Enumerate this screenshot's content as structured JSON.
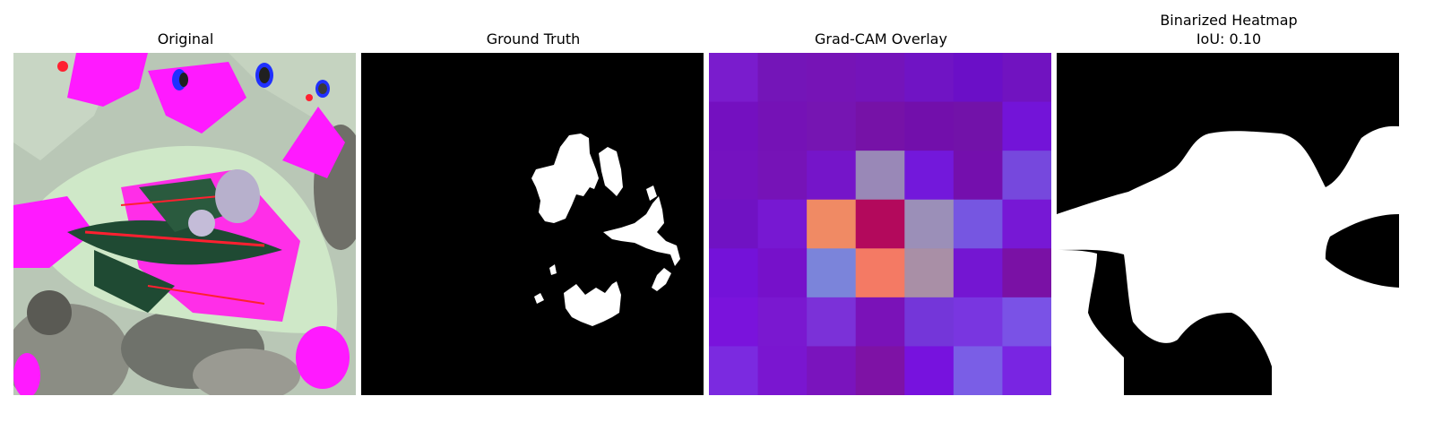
{
  "panels": [
    {
      "title": "Original"
    },
    {
      "title": "Ground Truth"
    },
    {
      "title": "Grad-CAM Overlay"
    },
    {
      "title": "Binarized Heatmap",
      "subtitle": "IoU: 0.10"
    }
  ],
  "gradcam_overlay": {
    "grid_size": 7,
    "cells": [
      [
        "#7a1ccd",
        "#7415b8",
        "#7614b6",
        "#7414ba",
        "#7014c4",
        "#6b0fc7",
        "#7113c0"
      ],
      [
        "#7410c0",
        "#7512b6",
        "#7615b2",
        "#7612a7",
        "#720fab",
        "#7212a9",
        "#7314d8"
      ],
      [
        "#7512c0",
        "#7613b7",
        "#7515c9",
        "#9988b7",
        "#7318db",
        "#740fad",
        "#7648dd"
      ],
      [
        "#7012c3",
        "#7718d2",
        "#f08a64",
        "#b3095c",
        "#9b8fb8",
        "#7656e1",
        "#7718d5"
      ],
      [
        "#7412d9",
        "#7611ca",
        "#7b84da",
        "#f47a64",
        "#a98fa6",
        "#7416d2",
        "#7a11a5"
      ],
      [
        "#7a13dc",
        "#7a18d0",
        "#7b31d8",
        "#7a12b8",
        "#7436d9",
        "#7936e0",
        "#7a52e6"
      ],
      [
        "#7b2ae0",
        "#7a16d0",
        "#7a14bd",
        "#7e12a5",
        "#7712de",
        "#7a5ee6",
        "#7925e2"
      ]
    ]
  },
  "colors": {
    "mask_background": "#000000",
    "mask_foreground": "#ffffff",
    "leaf_light": "#cfe8c8",
    "leaf_dark": "#1f4a33",
    "magenta": "#ff1aff",
    "background_gray": "#8d8d86"
  }
}
